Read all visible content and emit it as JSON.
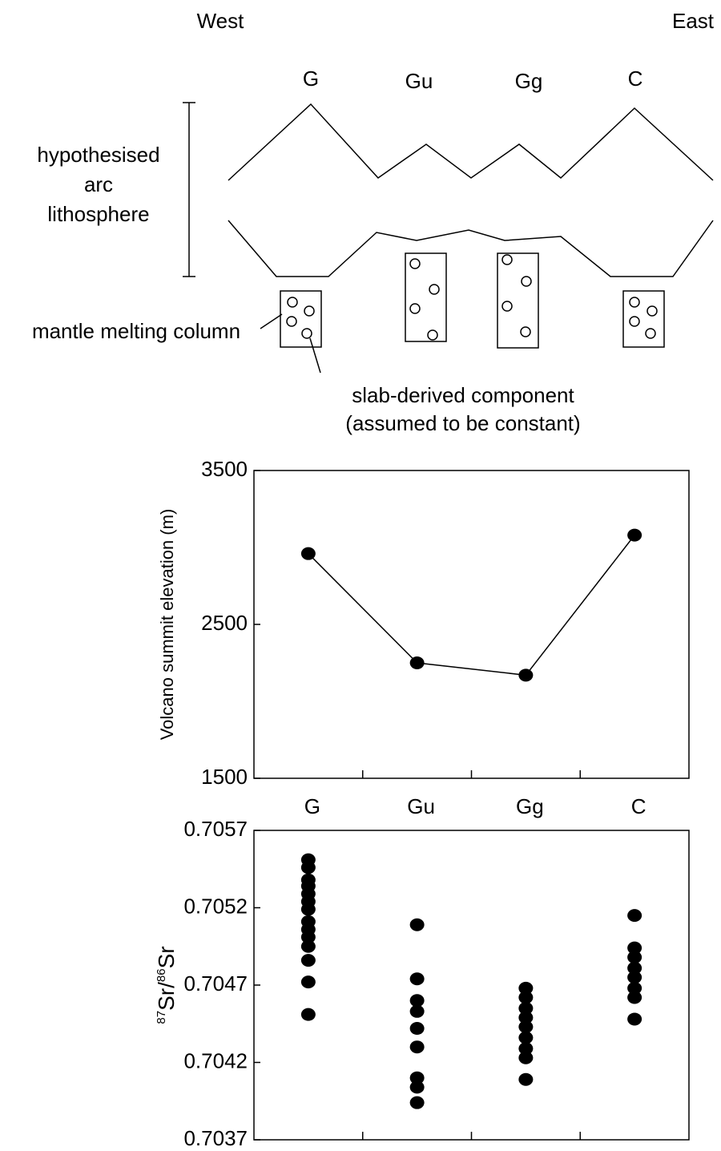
{
  "diagram": {
    "west": "West",
    "east": "East",
    "volcanoes": [
      "G",
      "Gu",
      "Gg",
      "C"
    ],
    "lithosphere_label": [
      "hypothesised",
      "arc",
      "lithosphere"
    ],
    "column_label": "mantle melting column",
    "slab_label": [
      "slab-derived component",
      "(assumed to be constant)"
    ]
  },
  "chart_data": [
    {
      "type": "line",
      "categories": [
        null,
        null,
        null,
        null
      ],
      "values": [
        2960,
        2250,
        2170,
        3080
      ],
      "y_label": "Volcano summit elevation (m)",
      "ylim": [
        1500,
        3500
      ],
      "yticks": [
        1500,
        2500,
        3500
      ],
      "color": "#000000"
    },
    {
      "type": "strip",
      "categories": [
        "G",
        "Gu",
        "Gg",
        "C"
      ],
      "values": [
        [
          0.70551,
          0.70546,
          0.70538,
          0.70534,
          0.70529,
          0.70524,
          0.70519,
          0.70511,
          0.70506,
          0.70501,
          0.70495,
          0.70486,
          0.70472,
          0.70451
        ],
        [
          0.70509,
          0.70474,
          0.7046,
          0.70453,
          0.70442,
          0.7043,
          0.7041,
          0.70404,
          0.70394
        ],
        [
          0.70468,
          0.70462,
          0.70455,
          0.70449,
          0.70443,
          0.70436,
          0.70429,
          0.70423,
          0.70409
        ],
        [
          0.70515,
          0.70494,
          0.70488,
          0.70481,
          0.70475,
          0.70468,
          0.70462,
          0.70448
        ]
      ],
      "y_label_parts": [
        "87",
        "Sr/",
        "86",
        "Sr"
      ],
      "ylim": [
        0.7037,
        0.7057
      ],
      "yticks": [
        0.7037,
        0.7042,
        0.7047,
        0.7052,
        0.7057
      ],
      "color": "#000000"
    }
  ]
}
